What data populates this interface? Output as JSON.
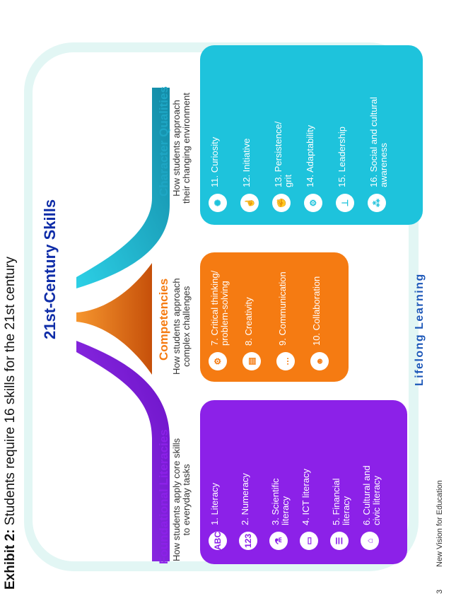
{
  "exhibit": {
    "label": "Exhibit 2:",
    "caption": "Students require 16 skills for the 21st century"
  },
  "title": "21st-Century Skills",
  "footer": {
    "page_number": "3",
    "source": "New Vision for Education"
  },
  "bottom_label": "Lifelong Learning",
  "colors": {
    "foundational": "#8c21e8",
    "competencies": "#f57b12",
    "character": "#1ec3dc",
    "title": "#0f2da8",
    "frame": "#e2f6f4"
  },
  "categories": [
    {
      "title": "Foundational Literacies",
      "subtitle_lines": [
        "How students apply core skills",
        "to everyday tasks"
      ],
      "items": [
        {
          "label_lines": [
            "1. Literacy"
          ],
          "icon": "abc-letters-icon",
          "glyph": "ABC"
        },
        {
          "label_lines": [
            "2. Numeracy"
          ],
          "icon": "numbers-icon",
          "glyph": "123"
        },
        {
          "label_lines": [
            "3. Scientific",
            "literacy"
          ],
          "icon": "flask-icon",
          "glyph": "⚗"
        },
        {
          "label_lines": [
            "4. ICT literacy"
          ],
          "icon": "computer-icon",
          "glyph": "▭"
        },
        {
          "label_lines": [
            "5. Financial",
            "literacy"
          ],
          "icon": "coins-icon",
          "glyph": "☰"
        },
        {
          "label_lines": [
            "6. Cultural and",
            "civic literacy"
          ],
          "icon": "building-icon",
          "glyph": "⌂"
        }
      ]
    },
    {
      "title": "Competencies",
      "subtitle_lines": [
        "How students approach",
        "complex challenges"
      ],
      "items": [
        {
          "label_lines": [
            "7. Critical thinking/",
            "problem-solving"
          ],
          "icon": "gears-head-icon",
          "glyph": "⚙"
        },
        {
          "label_lines": [
            "8. Creativity"
          ],
          "icon": "keyboard-icon",
          "glyph": "▤"
        },
        {
          "label_lines": [
            "9. Communication"
          ],
          "icon": "speech-bubble-icon",
          "glyph": "…"
        },
        {
          "label_lines": [
            "10. Collaboration"
          ],
          "icon": "people-icon",
          "glyph": "☻"
        }
      ]
    },
    {
      "title": "Character Qualities",
      "subtitle_lines": [
        "How students approach",
        "their changing environment"
      ],
      "items": [
        {
          "label_lines": [
            "11. Curiosity"
          ],
          "icon": "lightbulb-icon",
          "glyph": "✺"
        },
        {
          "label_lines": [
            "12. Initiative"
          ],
          "icon": "pointer-icon",
          "glyph": "☝"
        },
        {
          "label_lines": [
            "13. Persistence/",
            "grit"
          ],
          "icon": "fist-icon",
          "glyph": "✊"
        },
        {
          "label_lines": [
            "14. Adaptability"
          ],
          "icon": "cogs-icon",
          "glyph": "⚙"
        },
        {
          "label_lines": [
            "15. Leadership"
          ],
          "icon": "org-chart-icon",
          "glyph": "⊥"
        },
        {
          "label_lines": [
            "16. Social and cultural",
            "awareness"
          ],
          "icon": "group-icon",
          "glyph": "⁂"
        }
      ]
    }
  ]
}
